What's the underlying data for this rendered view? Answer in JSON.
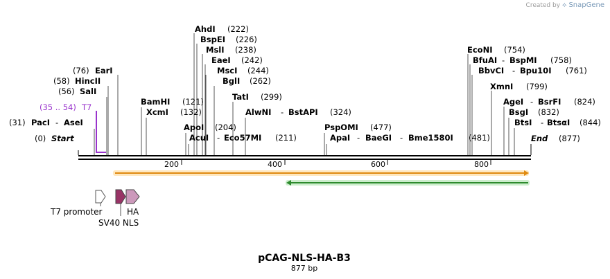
{
  "credit": {
    "prefix": "Created by",
    "brand": "SnapGene"
  },
  "title": "pCAG-NLS-HA-B3",
  "length_label": "877 bp",
  "start_label": "Start",
  "start_pos": "(0)",
  "end_label": "End",
  "end_pos": "(877)",
  "ticks": [
    "200",
    "400",
    "600",
    "800"
  ],
  "sites": [
    {
      "pos": "(31)",
      "name": "PacI",
      "name2": "AseI"
    },
    {
      "pos": "(35 .. 54)",
      "name": "T7",
      "name2": ""
    },
    {
      "pos": "(56)",
      "name": "SalI",
      "name2": ""
    },
    {
      "pos": "(58)",
      "name": "HincII",
      "name2": ""
    },
    {
      "pos": "(76)",
      "name": "EarI",
      "name2": ""
    },
    {
      "pos": "(121)",
      "name": "BamHI",
      "name2": ""
    },
    {
      "pos": "(132)",
      "name": "XcmI",
      "name2": ""
    },
    {
      "pos": "(204)",
      "name": "ApoI",
      "name2": ""
    },
    {
      "pos": "(211)",
      "name": "AcuI",
      "name2": "Eco57MI"
    },
    {
      "pos": "(222)",
      "name": "AhdI",
      "name2": ""
    },
    {
      "pos": "(226)",
      "name": "BspEI",
      "name2": ""
    },
    {
      "pos": "(238)",
      "name": "MslI",
      "name2": ""
    },
    {
      "pos": "(242)",
      "name": "EaeI",
      "name2": ""
    },
    {
      "pos": "(244)",
      "name": "MscI",
      "name2": ""
    },
    {
      "pos": "(262)",
      "name": "BglI",
      "name2": ""
    },
    {
      "pos": "(299)",
      "name": "TatI",
      "name2": ""
    },
    {
      "pos": "(324)",
      "name": "AlwNI",
      "name2": "BstAPI"
    },
    {
      "pos": "(477)",
      "name": "PspOMI",
      "name2": ""
    },
    {
      "pos": "(481)",
      "name": "ApaI",
      "name2": "BaeGI",
      "name3": "Bme1580I"
    },
    {
      "pos": "(754)",
      "name": "EcoNI",
      "name2": ""
    },
    {
      "pos": "(758)",
      "name": "BfuAI",
      "name2": "BspMI"
    },
    {
      "pos": "(761)",
      "name": "BbvCI",
      "name2": "Bpu10I"
    },
    {
      "pos": "(799)",
      "name": "XmnI",
      "name2": ""
    },
    {
      "pos": "(824)",
      "name": "AgeI",
      "name2": "BsrFI"
    },
    {
      "pos": "(832)",
      "name": "BsgI",
      "name2": ""
    },
    {
      "pos": "(844)",
      "name": "BtsI",
      "name2": "BtsαI"
    }
  ],
  "features": [
    {
      "name": "T7 promoter",
      "color": "#ffffff"
    },
    {
      "name": "SV40 NLS",
      "color": "#993366"
    },
    {
      "name": "HA",
      "color": "#cc99bb"
    }
  ],
  "colors": {
    "orange_track": "#f0a030",
    "green_track": "#339933",
    "t7_primer": "#9933cc"
  }
}
